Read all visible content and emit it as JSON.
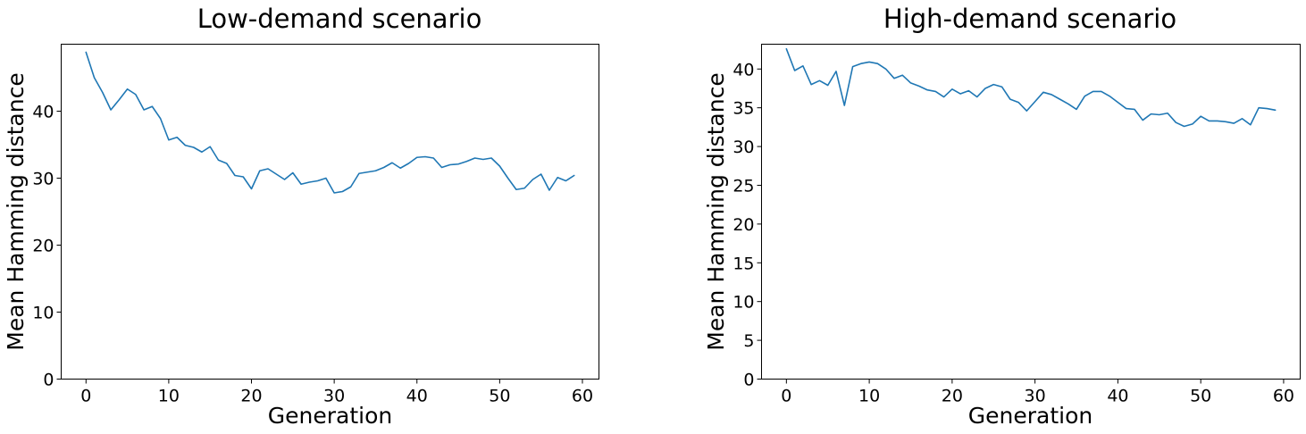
{
  "chart_data": [
    {
      "type": "line",
      "title": "Low-demand scenario",
      "xlabel": "Generation",
      "ylabel": "Mean Hamming distance",
      "xlim": [
        -3,
        62
      ],
      "ylim": [
        0,
        50
      ],
      "xticks": [
        0,
        10,
        20,
        30,
        40,
        50,
        60
      ],
      "yticks": [
        0,
        10,
        20,
        30,
        40
      ],
      "grid": false,
      "color": "#1f77b4",
      "series": [
        {
          "x": [
            0,
            1,
            2,
            3,
            4,
            5,
            6,
            7,
            8,
            9,
            10,
            11,
            12,
            13,
            14,
            15,
            16,
            17,
            18,
            19,
            20,
            21,
            22,
            23,
            24,
            25,
            26,
            27,
            28,
            29,
            30,
            31,
            32,
            33,
            34,
            35,
            36,
            37,
            38,
            39,
            40,
            41,
            42,
            43,
            44,
            45,
            46,
            47,
            48,
            49,
            50,
            51,
            52,
            53,
            54,
            55,
            56,
            57,
            58,
            59
          ],
          "values": [
            48.8,
            45.0,
            42.8,
            40.2,
            41.7,
            43.3,
            42.5,
            40.2,
            40.7,
            38.9,
            35.7,
            36.1,
            34.9,
            34.6,
            33.9,
            34.7,
            32.7,
            32.2,
            30.4,
            30.2,
            28.4,
            31.1,
            31.4,
            30.6,
            29.8,
            30.8,
            29.1,
            29.4,
            29.6,
            30.0,
            27.8,
            28.0,
            28.7,
            30.7,
            30.9,
            31.1,
            31.6,
            32.3,
            31.5,
            32.2,
            33.1,
            33.2,
            33.0,
            31.6,
            32.0,
            32.1,
            32.5,
            33.0,
            32.8,
            33.0,
            31.8,
            30.0,
            28.3,
            28.5,
            29.8,
            30.6,
            28.2,
            30.1,
            29.6,
            30.4
          ]
        }
      ]
    },
    {
      "type": "line",
      "title": "High-demand scenario",
      "xlabel": "Generation",
      "ylabel": "Mean Hamming distance",
      "xlim": [
        -3,
        62
      ],
      "ylim": [
        0,
        43.2
      ],
      "xticks": [
        0,
        10,
        20,
        30,
        40,
        50,
        60
      ],
      "yticks": [
        0,
        5,
        10,
        15,
        20,
        25,
        30,
        35,
        40
      ],
      "grid": false,
      "color": "#1f77b4",
      "series": [
        {
          "x": [
            0,
            1,
            2,
            3,
            4,
            5,
            6,
            7,
            8,
            9,
            10,
            11,
            12,
            13,
            14,
            15,
            16,
            17,
            18,
            19,
            20,
            21,
            22,
            23,
            24,
            25,
            26,
            27,
            28,
            29,
            30,
            31,
            32,
            33,
            34,
            35,
            36,
            37,
            38,
            39,
            40,
            41,
            42,
            43,
            44,
            45,
            46,
            47,
            48,
            49,
            50,
            51,
            52,
            53,
            54,
            55,
            56,
            57,
            58,
            59
          ],
          "values": [
            42.6,
            39.8,
            40.4,
            38.0,
            38.5,
            37.9,
            39.7,
            35.3,
            40.3,
            40.7,
            40.9,
            40.7,
            40.0,
            38.8,
            39.2,
            38.2,
            37.8,
            37.3,
            37.1,
            36.4,
            37.4,
            36.8,
            37.2,
            36.4,
            37.5,
            38.0,
            37.7,
            36.1,
            35.7,
            34.6,
            35.8,
            37.0,
            36.7,
            36.1,
            35.5,
            34.8,
            36.5,
            37.1,
            37.1,
            36.5,
            35.7,
            34.9,
            34.8,
            33.4,
            34.2,
            34.1,
            34.3,
            33.1,
            32.6,
            32.9,
            33.9,
            33.3,
            33.3,
            33.2,
            33.0,
            33.6,
            32.8,
            35.0,
            34.9,
            34.7
          ]
        }
      ]
    }
  ]
}
